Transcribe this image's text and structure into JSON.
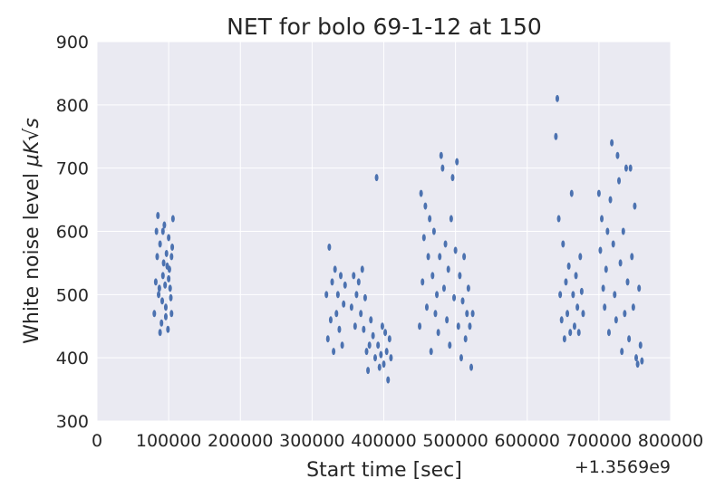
{
  "chart_data": {
    "type": "scatter",
    "title": "NET for bolo 69-1-12 at 150",
    "xlabel": "Start time [sec]",
    "ylabel_text": "White noise level ",
    "ylabel_math": "μK√s",
    "x_offset_label": "+1.3569e9",
    "xlim": [
      0,
      800000
    ],
    "ylim": [
      300,
      900
    ],
    "xticks": [
      0,
      100000,
      200000,
      300000,
      400000,
      500000,
      600000,
      700000,
      800000
    ],
    "xtick_labels": [
      "0",
      "100000",
      "200000",
      "300000",
      "400000",
      "500000",
      "600000",
      "700000",
      "800000"
    ],
    "yticks": [
      300,
      400,
      500,
      600,
      700,
      800,
      900
    ],
    "ytick_labels": [
      "300",
      "400",
      "500",
      "600",
      "700",
      "800",
      "900"
    ],
    "grid": true,
    "colors": {
      "marker": "#4c72b0",
      "axes_bg": "#eaeaf2",
      "grid": "#ffffff"
    },
    "series": [
      {
        "points": [
          [
            80000,
            470
          ],
          [
            82000,
            520
          ],
          [
            84000,
            560
          ],
          [
            86000,
            500
          ],
          [
            88000,
            580
          ],
          [
            90000,
            455
          ],
          [
            92000,
            530
          ],
          [
            94000,
            610
          ],
          [
            96000,
            480
          ],
          [
            98000,
            545
          ],
          [
            100000,
            590
          ],
          [
            102000,
            510
          ],
          [
            104000,
            470
          ],
          [
            106000,
            620
          ],
          [
            85000,
            625
          ],
          [
            88000,
            440
          ],
          [
            92000,
            600
          ],
          [
            95000,
            515
          ],
          [
            97000,
            565
          ],
          [
            101000,
            540
          ],
          [
            103000,
            495
          ],
          [
            105000,
            575
          ],
          [
            99000,
            445
          ],
          [
            83000,
            600
          ],
          [
            87000,
            510
          ],
          [
            91000,
            490
          ],
          [
            93000,
            550
          ],
          [
            96000,
            465
          ],
          [
            100000,
            525
          ],
          [
            104000,
            560
          ],
          [
            320000,
            500
          ],
          [
            322000,
            430
          ],
          [
            324000,
            575
          ],
          [
            326000,
            460
          ],
          [
            328000,
            520
          ],
          [
            330000,
            410
          ],
          [
            332000,
            540
          ],
          [
            334000,
            470
          ],
          [
            336000,
            500
          ],
          [
            338000,
            445
          ],
          [
            340000,
            530
          ],
          [
            342000,
            420
          ],
          [
            344000,
            485
          ],
          [
            346000,
            515
          ],
          [
            355000,
            480
          ],
          [
            358000,
            530
          ],
          [
            360000,
            450
          ],
          [
            362000,
            500
          ],
          [
            365000,
            520
          ],
          [
            368000,
            470
          ],
          [
            370000,
            540
          ],
          [
            372000,
            445
          ],
          [
            374000,
            495
          ],
          [
            376000,
            410
          ],
          [
            378000,
            380
          ],
          [
            380000,
            420
          ],
          [
            382000,
            460
          ],
          [
            385000,
            435
          ],
          [
            388000,
            400
          ],
          [
            390000,
            685
          ],
          [
            392000,
            420
          ],
          [
            394000,
            385
          ],
          [
            396000,
            405
          ],
          [
            398000,
            450
          ],
          [
            400000,
            390
          ],
          [
            402000,
            440
          ],
          [
            404000,
            410
          ],
          [
            406000,
            365
          ],
          [
            408000,
            430
          ],
          [
            410000,
            400
          ],
          [
            450000,
            450
          ],
          [
            452000,
            660
          ],
          [
            454000,
            520
          ],
          [
            456000,
            590
          ],
          [
            458000,
            640
          ],
          [
            460000,
            480
          ],
          [
            462000,
            560
          ],
          [
            464000,
            620
          ],
          [
            466000,
            410
          ],
          [
            468000,
            530
          ],
          [
            470000,
            600
          ],
          [
            472000,
            470
          ],
          [
            474000,
            500
          ],
          [
            476000,
            440
          ],
          [
            478000,
            560
          ],
          [
            480000,
            720
          ],
          [
            482000,
            700
          ],
          [
            484000,
            510
          ],
          [
            486000,
            580
          ],
          [
            488000,
            460
          ],
          [
            490000,
            540
          ],
          [
            492000,
            420
          ],
          [
            494000,
            620
          ],
          [
            496000,
            685
          ],
          [
            498000,
            495
          ],
          [
            500000,
            570
          ],
          [
            502000,
            710
          ],
          [
            504000,
            450
          ],
          [
            506000,
            530
          ],
          [
            508000,
            400
          ],
          [
            510000,
            490
          ],
          [
            512000,
            560
          ],
          [
            514000,
            430
          ],
          [
            516000,
            470
          ],
          [
            518000,
            510
          ],
          [
            520000,
            450
          ],
          [
            522000,
            385
          ],
          [
            524000,
            470
          ],
          [
            640000,
            750
          ],
          [
            642000,
            810
          ],
          [
            644000,
            620
          ],
          [
            646000,
            500
          ],
          [
            648000,
            460
          ],
          [
            650000,
            580
          ],
          [
            652000,
            430
          ],
          [
            654000,
            520
          ],
          [
            656000,
            470
          ],
          [
            658000,
            545
          ],
          [
            660000,
            440
          ],
          [
            662000,
            660
          ],
          [
            664000,
            500
          ],
          [
            666000,
            450
          ],
          [
            668000,
            530
          ],
          [
            670000,
            480
          ],
          [
            672000,
            440
          ],
          [
            674000,
            560
          ],
          [
            676000,
            505
          ],
          [
            678000,
            470
          ],
          [
            700000,
            660
          ],
          [
            702000,
            570
          ],
          [
            704000,
            620
          ],
          [
            706000,
            510
          ],
          [
            708000,
            480
          ],
          [
            710000,
            540
          ],
          [
            712000,
            600
          ],
          [
            714000,
            440
          ],
          [
            716000,
            650
          ],
          [
            718000,
            740
          ],
          [
            720000,
            580
          ],
          [
            722000,
            500
          ],
          [
            724000,
            460
          ],
          [
            726000,
            720
          ],
          [
            728000,
            680
          ],
          [
            730000,
            550
          ],
          [
            732000,
            410
          ],
          [
            734000,
            600
          ],
          [
            736000,
            470
          ],
          [
            738000,
            700
          ],
          [
            740000,
            520
          ],
          [
            742000,
            430
          ],
          [
            744000,
            700
          ],
          [
            746000,
            560
          ],
          [
            748000,
            480
          ],
          [
            750000,
            640
          ],
          [
            752000,
            400
          ],
          [
            754000,
            390
          ],
          [
            756000,
            510
          ],
          [
            758000,
            420
          ],
          [
            760000,
            395
          ]
        ]
      }
    ]
  }
}
